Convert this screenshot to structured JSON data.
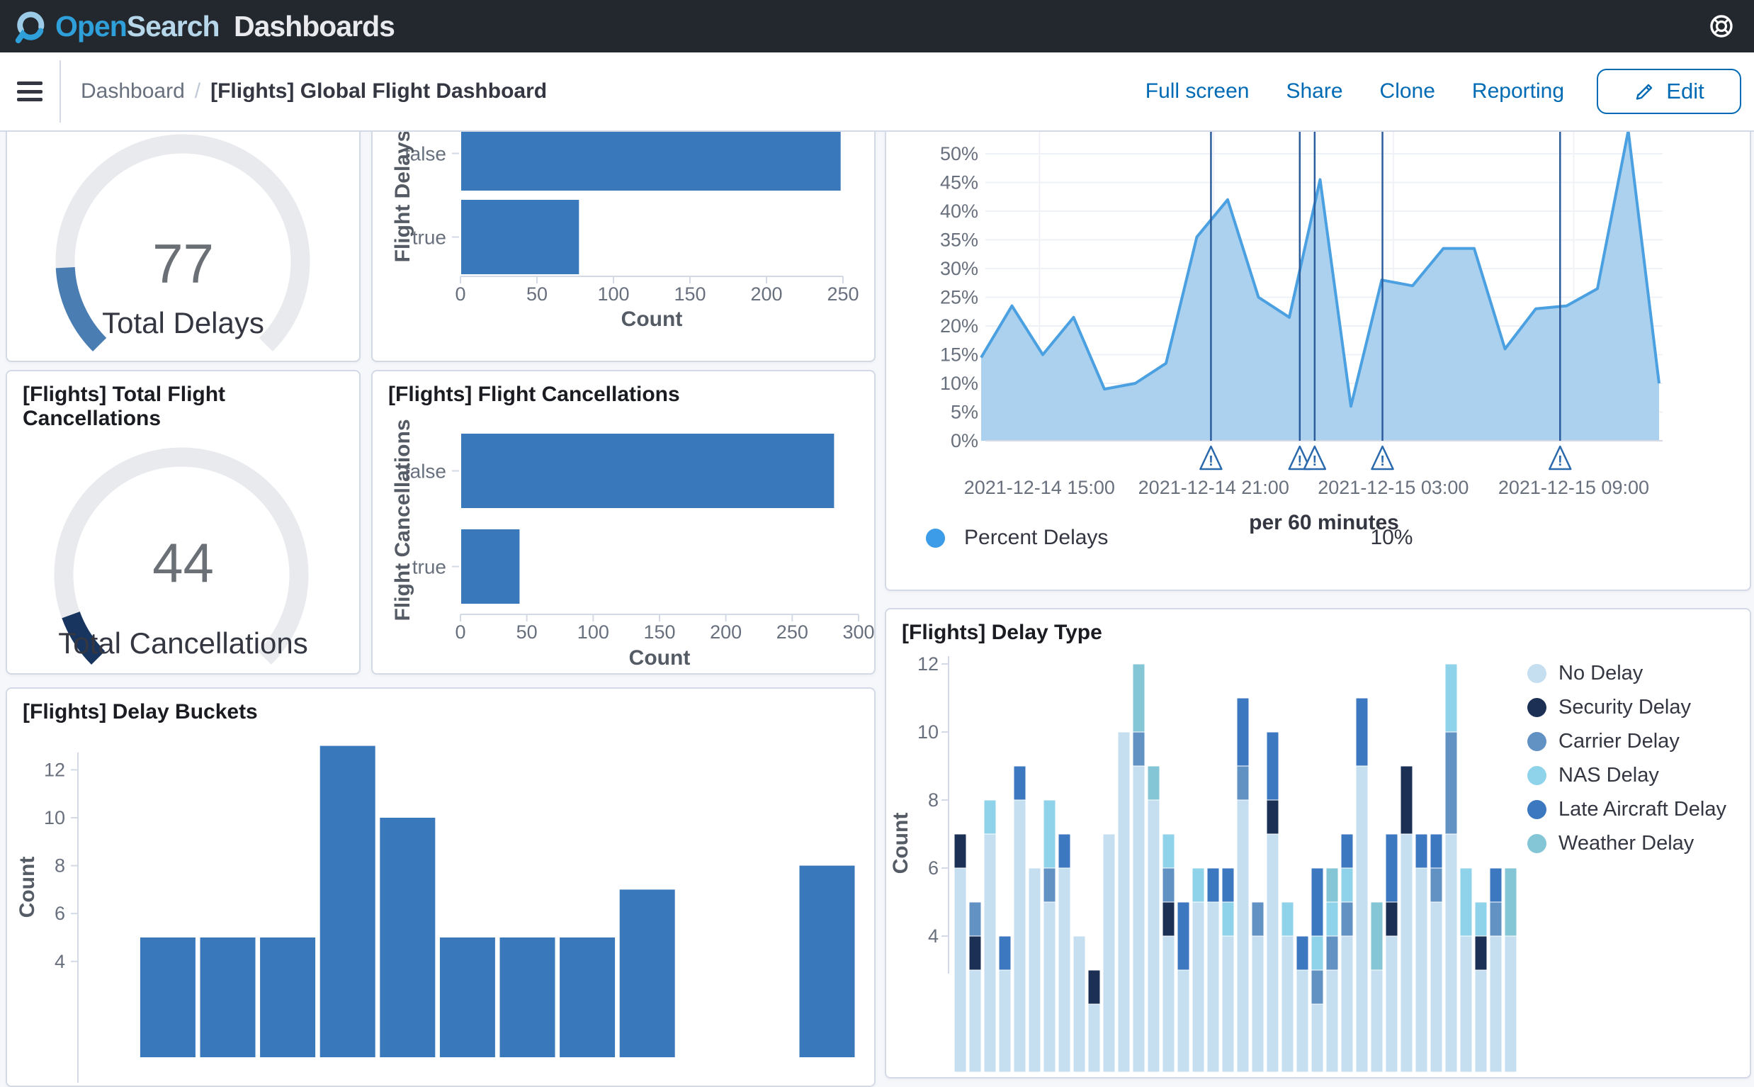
{
  "header": {
    "logo_open": "Open",
    "logo_search": "Search",
    "logo_dashboards": "Dashboards"
  },
  "navbar": {
    "breadcrumb_root": "Dashboard",
    "breadcrumb_sep": "/",
    "page_title": "[Flights] Global Flight Dashboard",
    "action_full_screen": "Full screen",
    "action_share": "Share",
    "action_clone": "Clone",
    "action_reporting": "Reporting",
    "edit_label": "Edit"
  },
  "panels": {
    "total_delays": {
      "value": "77",
      "label": "Total Delays"
    },
    "total_cancellations": {
      "title": "[Flights] Total Flight Cancellations",
      "value": "44",
      "label": "Total Cancellations"
    },
    "flight_cancellations_title": "[Flights] Flight Cancellations",
    "delay_buckets_title": "[Flights] Delay Buckets",
    "delay_type_title": "[Flights] Delay Type"
  },
  "colors": {
    "bar_blue": "#3a78bc",
    "gauge_track": "#e8eaed",
    "gauge_blue": "#4a7db2",
    "gauge_navy": "#17355f",
    "area_line": "#4aa0e0",
    "area_fill": "#a8cfed",
    "annotation_line": "#2b5d9c",
    "link_blue": "#006bb4",
    "axis_gray": "#d3dae6",
    "tick_text": "#69707d",
    "axis_title": "#545b64"
  },
  "chart_data": [
    {
      "id": "total_delays_gauge",
      "type": "gauge",
      "value": 77,
      "arc_degrees": 42,
      "arc_color": "#4a7db2",
      "label": "Total Delays"
    },
    {
      "id": "flight_delays",
      "type": "bar",
      "orientation": "horizontal",
      "categories": [
        "false",
        "true"
      ],
      "values": [
        248,
        77
      ],
      "xlabel": "Count",
      "ylabel": "Flight Delays",
      "xlim": [
        0,
        250
      ],
      "xticks": [
        0,
        50,
        100,
        150,
        200,
        250
      ],
      "bar_color": "#3a78bc"
    },
    {
      "id": "delay_percent",
      "type": "area",
      "title": "",
      "xlabel": "per 60 minutes",
      "ylabel": "",
      "ylim": [
        0,
        55
      ],
      "yticks": [
        0,
        5,
        10,
        15,
        20,
        25,
        30,
        35,
        40,
        45,
        50
      ],
      "ytick_suffix": "%",
      "series": [
        {
          "name": "Percent Delays",
          "values": [
            14.5,
            23.5,
            15,
            21.5,
            9,
            10,
            13.5,
            35.5,
            42,
            25,
            21.5,
            45.5,
            6,
            28,
            27,
            33.5,
            33.5,
            16,
            23,
            23.5,
            26.5,
            54,
            10
          ]
        }
      ],
      "x_tick_labels": [
        "2021-12-14 15:00",
        "2021-12-14 21:00",
        "2021-12-15 03:00",
        "2021-12-15 09:00"
      ],
      "x_tick_pos": [
        0.086,
        0.343,
        0.608,
        0.874
      ],
      "annotations_x": [
        0.339,
        0.47,
        0.492,
        0.592,
        0.854
      ],
      "legend": [
        {
          "label": "Percent Delays",
          "color": "#3d9ce8"
        }
      ],
      "legend_value": "10%",
      "line_color": "#4aa0e0",
      "fill_color": "#a8cfed",
      "grid": true
    },
    {
      "id": "total_cancellations_gauge",
      "type": "gauge",
      "value": 44,
      "arc_degrees": 25,
      "arc_color": "#17355f",
      "label": "Total Cancellations"
    },
    {
      "id": "flight_cancellations",
      "type": "bar",
      "orientation": "horizontal",
      "categories": [
        "false",
        "true"
      ],
      "values": [
        281,
        44
      ],
      "xlabel": "Count",
      "ylabel": "Flight Cancellations",
      "xlim": [
        0,
        300
      ],
      "xticks": [
        0,
        50,
        100,
        150,
        200,
        250,
        300
      ],
      "bar_color": "#3a78bc"
    },
    {
      "id": "delay_buckets",
      "type": "bar",
      "orientation": "vertical",
      "title": "[Flights] Delay Buckets",
      "values": [
        null,
        5,
        5,
        5,
        13,
        10,
        5,
        5,
        5,
        7,
        null,
        null,
        8
      ],
      "ylabel": "Count",
      "yticks": [
        4,
        6,
        8,
        10,
        12
      ],
      "bar_color": "#3a78bc",
      "note_bottom_cut": "x axis below visible viewport"
    },
    {
      "id": "delay_type",
      "type": "bar",
      "stacked": true,
      "title": "[Flights] Delay Type",
      "ylabel": "Count",
      "yticks": [
        4,
        6,
        8,
        10,
        12
      ],
      "series_names": [
        "No Delay",
        "Security Delay",
        "Carrier Delay",
        "NAS Delay",
        "Late Aircraft Delay",
        "Weather Delay"
      ],
      "series_colors": [
        "#c5def0",
        "#1b3054",
        "#6291c4",
        "#8ed3ea",
        "#3c78c0",
        "#84c5d6"
      ],
      "bars": [
        [
          6,
          1,
          0,
          0,
          0,
          0
        ],
        [
          3,
          1,
          1,
          0,
          0,
          0
        ],
        [
          7,
          0,
          0,
          1,
          0,
          0
        ],
        [
          3,
          0,
          0,
          0,
          1,
          0
        ],
        [
          8,
          0,
          0,
          0,
          1,
          0
        ],
        [
          6,
          0,
          0,
          0,
          0,
          0
        ],
        [
          5,
          0,
          1,
          2,
          0,
          0
        ],
        [
          6,
          0,
          0,
          0,
          1,
          0
        ],
        [
          4,
          0,
          0,
          0,
          0,
          0
        ],
        [
          2,
          1,
          0,
          0,
          0,
          0
        ],
        [
          7,
          0,
          0,
          0,
          0,
          0
        ],
        [
          10,
          0,
          0,
          0,
          0,
          0
        ],
        [
          9,
          0,
          1,
          0,
          0,
          2
        ],
        [
          8,
          0,
          0,
          0,
          0,
          1
        ],
        [
          4,
          1,
          1,
          1,
          0,
          0
        ],
        [
          3,
          0,
          0,
          0,
          2,
          0
        ],
        [
          5,
          0,
          0,
          1,
          0,
          0
        ],
        [
          5,
          0,
          0,
          0,
          1,
          0
        ],
        [
          4,
          0,
          0,
          1,
          1,
          0
        ],
        [
          8,
          0,
          1,
          0,
          2,
          0
        ],
        [
          4,
          0,
          1,
          0,
          0,
          0
        ],
        [
          7,
          1,
          0,
          0,
          2,
          0
        ],
        [
          4,
          0,
          0,
          1,
          0,
          0
        ],
        [
          3,
          0,
          0,
          0,
          1,
          0
        ],
        [
          2,
          0,
          1,
          1,
          2,
          0
        ],
        [
          3,
          0,
          1,
          1,
          0,
          1
        ],
        [
          4,
          0,
          1,
          1,
          1,
          0
        ],
        [
          9,
          0,
          0,
          0,
          2,
          0
        ],
        [
          3,
          0,
          0,
          0,
          0,
          2
        ],
        [
          4,
          1,
          0,
          0,
          2,
          0
        ],
        [
          7,
          2,
          0,
          0,
          0,
          0
        ],
        [
          6,
          0,
          0,
          0,
          1,
          0
        ],
        [
          5,
          0,
          1,
          0,
          1,
          0
        ],
        [
          7,
          0,
          3,
          2,
          0,
          0
        ],
        [
          4,
          0,
          0,
          2,
          0,
          0
        ],
        [
          3,
          1,
          0,
          1,
          0,
          0
        ],
        [
          4,
          0,
          1,
          0,
          1,
          0
        ],
        [
          4,
          0,
          0,
          0,
          0,
          2
        ]
      ]
    }
  ]
}
